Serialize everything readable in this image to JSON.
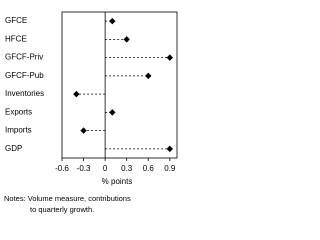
{
  "chart_data": {
    "type": "dot",
    "categories": [
      "GFCE",
      "HFCE",
      "GFCF-Priv",
      "GFCF-Pub",
      "Inventories",
      "Exports",
      "Imports",
      "GDP"
    ],
    "values": [
      0.1,
      0.3,
      0.9,
      0.6,
      -0.4,
      0.1,
      -0.3,
      0.9
    ],
    "color": "#000000",
    "xlim": [
      -0.6,
      1.0
    ],
    "xticks": [
      -0.6,
      -0.3,
      0,
      0.3,
      0.6,
      0.9
    ],
    "xlabel": "% points",
    "notes": [
      "Notes: Volume measure, contributions",
      "to quarterly growth."
    ]
  }
}
